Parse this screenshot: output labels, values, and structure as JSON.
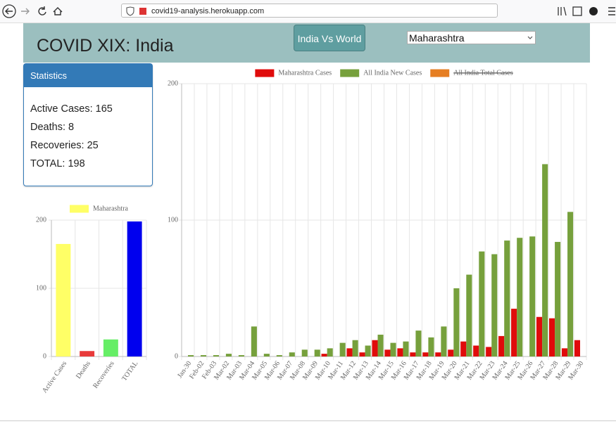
{
  "browser": {
    "url": "covid19-analysis.herokuapp.com"
  },
  "header": {
    "title": "COVID XIX: India",
    "button": "India Vs World",
    "select": "Maharashtra"
  },
  "statistics": {
    "title": "Statistics",
    "lines": [
      "Active Cases: 165",
      "Deaths: 8",
      "Recoveries: 25",
      "TOTAL: 198"
    ]
  },
  "chart_data": [
    {
      "type": "bar",
      "categories": [
        "Active Cases",
        "Deaths",
        "Recoveries",
        "TOTAL"
      ],
      "series": [
        {
          "name": "Maharashtra",
          "colors": [
            "#ffff66",
            "#e83a3a",
            "#66ee66",
            "#0000ee"
          ],
          "values": [
            165,
            8,
            25,
            198
          ]
        }
      ],
      "ylim": [
        0,
        200
      ],
      "yticks": [
        0,
        100,
        200
      ],
      "grid": true,
      "legend": "top"
    },
    {
      "type": "bar",
      "categories": [
        "Jan-30",
        "Feb-02",
        "Feb-03",
        "Mar-02",
        "Mar-03",
        "Mar-04",
        "Mar-05",
        "Mar-06",
        "Mar-07",
        "Mar-08",
        "Mar-09",
        "Mar-10",
        "Mar-11",
        "Mar-12",
        "Mar-13",
        "Mar-14",
        "Mar-15",
        "Mar-16",
        "Mar-17",
        "Mar-18",
        "Mar-19",
        "Mar-20",
        "Mar-21",
        "Mar-22",
        "Mar-23",
        "Mar-24",
        "Mar-25",
        "Mar-26",
        "Mar-27",
        "Mar-28",
        "Mar-29",
        "Mar-30"
      ],
      "series": [
        {
          "name": "Maharashtra Cases",
          "color": "#e00b0b",
          "values": [
            0,
            0,
            0,
            0,
            0,
            0,
            0,
            0,
            0,
            0,
            0,
            2,
            0,
            6,
            3,
            12,
            5,
            6,
            3,
            3,
            3,
            5,
            11,
            8,
            7,
            15,
            35,
            0,
            29,
            28,
            6,
            12
          ]
        },
        {
          "name": "All India New Cases",
          "color": "#76a03c",
          "values": [
            1,
            1,
            1,
            2,
            1,
            22,
            2,
            1,
            3,
            5,
            5,
            6,
            10,
            12,
            8,
            16,
            10,
            11,
            19,
            14,
            22,
            50,
            60,
            77,
            75,
            85,
            87,
            88,
            141,
            84,
            106,
            0
          ]
        }
      ],
      "hidden_series": [
        {
          "name": "All India Total Cases",
          "color": "#e67e22"
        }
      ],
      "ylim": [
        0,
        200
      ],
      "yticks": [
        0,
        100,
        200
      ],
      "grid": true,
      "legend": "top"
    }
  ]
}
